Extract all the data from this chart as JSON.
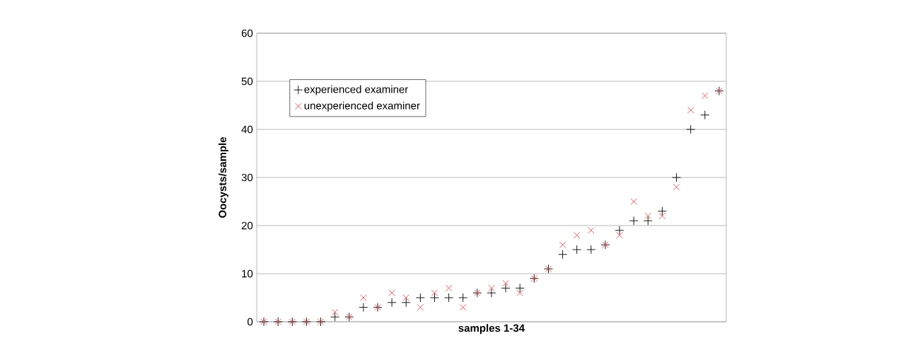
{
  "chart_data": {
    "type": "scatter",
    "xlabel": "samples 1-34",
    "ylabel": "Oocysts/sample",
    "categories": [
      null,
      null,
      null,
      null,
      null,
      null,
      null,
      null,
      null,
      null,
      null,
      null,
      null,
      null,
      null,
      null,
      null,
      null,
      null,
      null,
      null,
      null,
      null,
      null,
      null,
      null,
      null,
      null,
      null,
      null,
      null,
      null,
      null
    ],
    "series": [
      {
        "name": "experienced examiner",
        "color": "#000000",
        "marker": "plus",
        "values": [
          0,
          0,
          0,
          0,
          0,
          1,
          1,
          3,
          3,
          4,
          4,
          5,
          5,
          5,
          5,
          6,
          6,
          7,
          7,
          9,
          11,
          14,
          15,
          15,
          16,
          19,
          21,
          21,
          23,
          30,
          40,
          43,
          48
        ]
      },
      {
        "name": "unexperienced examiner",
        "color": "#e8474c",
        "marker": "cross",
        "values": [
          0,
          0,
          0,
          0,
          0,
          2,
          1,
          5,
          3,
          6,
          5,
          3,
          6,
          7,
          3,
          6,
          7,
          8,
          6,
          9,
          11,
          16,
          18,
          19,
          16,
          18,
          25,
          22,
          22,
          28,
          44,
          47,
          48
        ]
      }
    ],
    "ylim": [
      0,
      60
    ],
    "yticks": [
      0,
      10,
      20,
      30,
      40,
      50,
      60
    ],
    "tick_labels": "y",
    "grid": "y",
    "legend": "top left"
  }
}
